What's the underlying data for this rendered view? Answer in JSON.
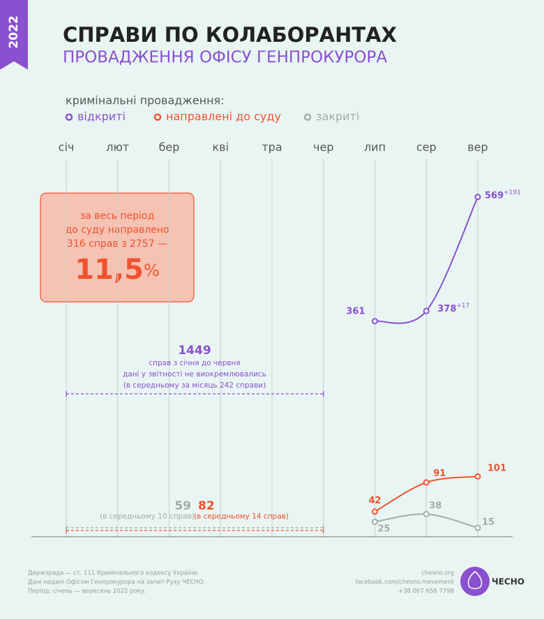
{
  "badge": "2022",
  "footer": {
    "source": [
      "Держзрада — ст. 111 Кримінального кодексу України.",
      "Дані надані Офісом Генпрокурора на запит Руху ЧЕСНО.",
      "Період: січень — вересень 2022 року."
    ],
    "contacts": [
      "chesno.org",
      "facebook.com/chesno.movement",
      "+38 067 658 7798"
    ],
    "logo": "ЧЕСНО"
  },
  "chart_data": {
    "type": "line",
    "title": "СПРАВИ ПО КОЛАБОРАНТАХ",
    "subtitle": "ПРОВАДЖЕННЯ ОФІСУ ГЕНПРОКУРОРА",
    "legend_title": "кримінальні провадження:",
    "categories": [
      "січ",
      "лют",
      "бер",
      "кві",
      "тра",
      "чер",
      "лип",
      "сер",
      "вер"
    ],
    "ylim": [
      0,
      600
    ],
    "grid": true,
    "series": [
      {
        "name": "відкриті",
        "color": "#8a50d0",
        "values": [
          null,
          null,
          null,
          null,
          null,
          null,
          361,
          378,
          569
        ],
        "value_notes": [
          null,
          null,
          null,
          null,
          null,
          null,
          null,
          "+17",
          "+191"
        ],
        "period_total": {
          "value": 1449,
          "notes": [
            "справ з січня до червня",
            "дані у звітності не виокремлювались",
            "(в середньому за місяць 242 справи)"
          ]
        }
      },
      {
        "name": "направлені до суду",
        "color": "#f0522e",
        "values": [
          null,
          null,
          null,
          null,
          null,
          null,
          42,
          91,
          101
        ],
        "period_total": {
          "value": 82,
          "notes": [
            "(в середньому 14 справ)"
          ]
        }
      },
      {
        "name": "закриті",
        "color": "#a3abab",
        "values": [
          null,
          null,
          null,
          null,
          null,
          null,
          25,
          38,
          15
        ],
        "period_total": {
          "value": 59,
          "notes": [
            "(в середньому 10 справ)"
          ]
        }
      }
    ],
    "summary_box": {
      "lines": [
        "за весь період",
        "до суду направлено",
        "316 справ з 2757 —"
      ],
      "share": "11,5",
      "share_unit": "%"
    }
  }
}
